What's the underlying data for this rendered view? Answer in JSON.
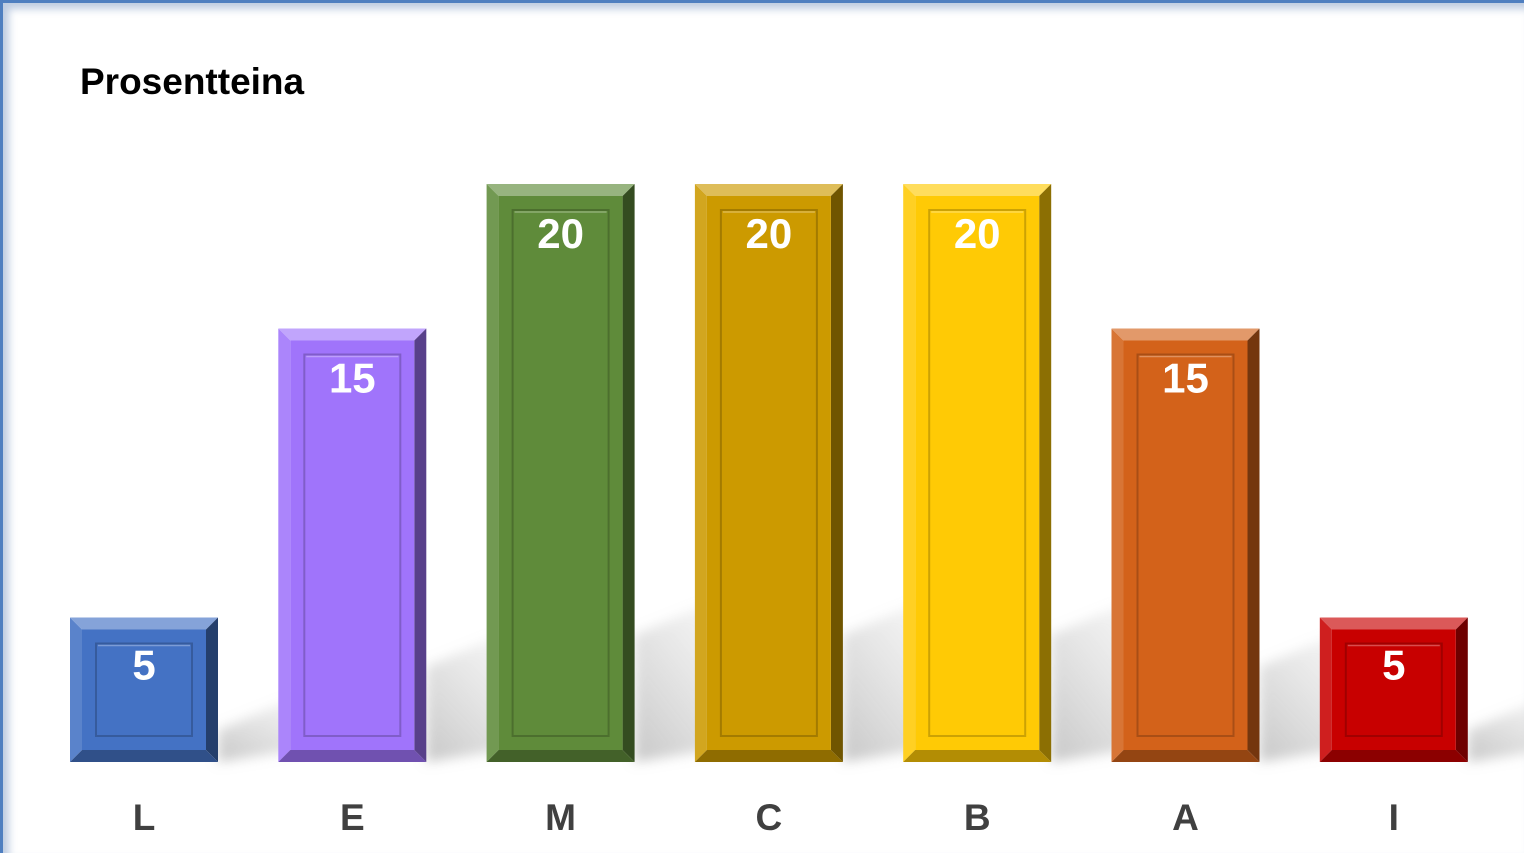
{
  "chart_data": {
    "type": "bar",
    "title": "Prosentteina",
    "categories": [
      "L",
      "E",
      "M",
      "C",
      "B",
      "A",
      "I"
    ],
    "values": [
      5,
      15,
      20,
      20,
      20,
      15,
      5
    ],
    "colors": [
      "#4472c4",
      "#a074fb",
      "#5f8b3a",
      "#cc9a00",
      "#ffca05",
      "#d3621a",
      "#c80000"
    ],
    "ylim": [
      0,
      20
    ],
    "grid": false,
    "legend": "none",
    "data_labels": true
  }
}
